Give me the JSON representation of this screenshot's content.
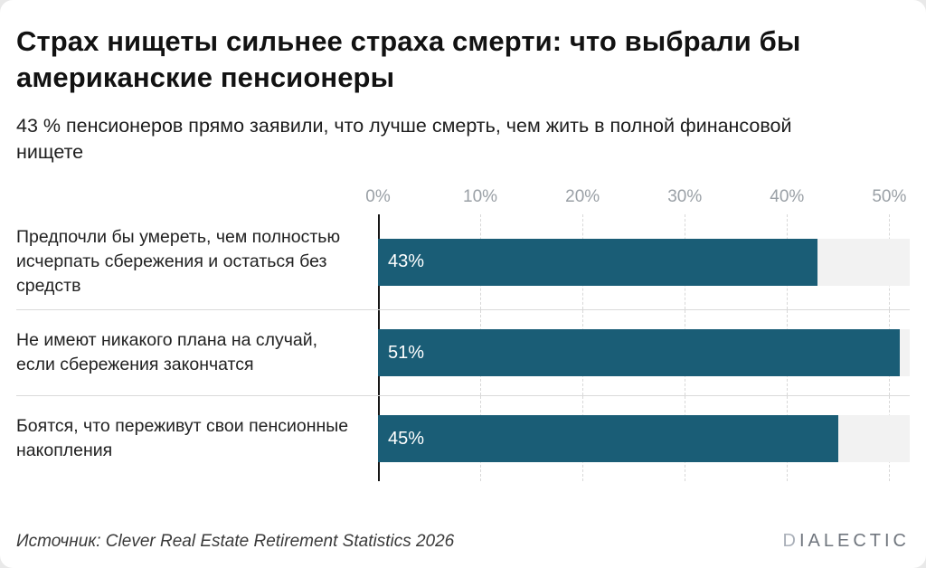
{
  "header": {
    "title": "Страх нищеты сильнее страха смерти: что выбрали бы американские пенсионеры",
    "subtitle": "43 % пенсионеров прямо заявили, что лучше смерть, чем жить в полной финансовой нищете"
  },
  "footer": {
    "source": "Источник: Clever Real Estate Retirement Statistics 2026",
    "logo_mark": "D",
    "logo_rest": "IALECTIC"
  },
  "colors": {
    "bar": "#1a5d76",
    "bar_track": "#f2f2f2",
    "gridline": "#d8d8d8",
    "axis_baseline": "#161616",
    "tick_text": "#9aa0a6"
  },
  "chart_data": {
    "type": "bar",
    "orientation": "horizontal",
    "title": "Страх нищеты сильнее страха смерти: что выбрали бы американские пенсионеры",
    "subtitle": "43 % пенсионеров прямо заявили, что лучше смерть, чем жить в полной финансовой нищете",
    "categories": [
      "Предпочли бы умереть, чем полностью исчерпать сбережения и остаться без средств",
      "Не имеют никакого плана на случай, если сбережения закончатся",
      "Боятся, что переживут свои пенсионные накопления"
    ],
    "values": [
      43,
      51,
      45
    ],
    "value_labels": [
      "43%",
      "51%",
      "45%"
    ],
    "x_tick_values": [
      0,
      10,
      20,
      30,
      40,
      50
    ],
    "x_tick_labels": [
      "0%",
      "10%",
      "20%",
      "30%",
      "40%",
      "50%"
    ],
    "xlim": [
      0,
      52
    ],
    "unit": "%",
    "grid": "dashed-vertical",
    "legend": "none",
    "source": "Источник: Clever Real Estate Retirement Statistics 2026"
  }
}
